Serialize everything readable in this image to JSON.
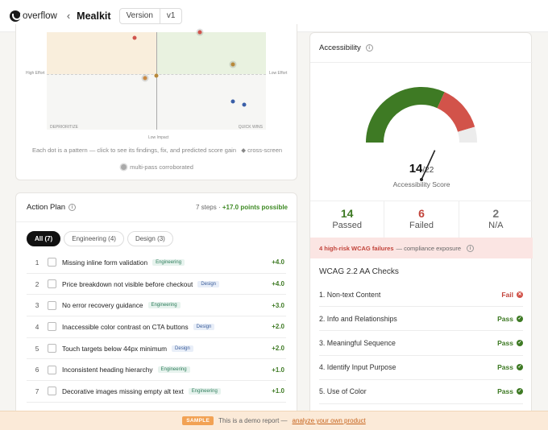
{
  "header": {
    "logo_text": "overflow",
    "project_name": "Mealkit",
    "version_label": "Version",
    "version_value": "v1"
  },
  "quadrant": {
    "labels": {
      "high_effort_left": "High Effort",
      "low_effort_right": "Low Effort",
      "bottom_left": "DEPRIORITIZE",
      "bottom_right": "QUICK WINS",
      "bottom_axis": "Low Impact"
    },
    "points": [
      {
        "x": 0.4,
        "y": 0.06,
        "color": "#d0544c",
        "multi": false
      },
      {
        "x": 0.7,
        "y": 0.0,
        "color": "#d0544c",
        "multi": true
      },
      {
        "x": 0.85,
        "y": 0.33,
        "color": "#b8893a",
        "multi": true
      },
      {
        "x": 0.5,
        "y": 0.45,
        "color": "#b8893a",
        "multi": false
      },
      {
        "x": 0.45,
        "y": 0.47,
        "color": "#c98a44",
        "multi": true
      },
      {
        "x": 0.85,
        "y": 0.71,
        "color": "#3a5fa8",
        "multi": false
      },
      {
        "x": 0.9,
        "y": 0.74,
        "color": "#3a5fa8",
        "multi": false
      }
    ],
    "caption": "Each dot is a pattern — click to see its findings, fix, and predicted score gain",
    "cross_screen_legend": "◆ cross-screen",
    "multipass_legend": "multi-pass corroborated"
  },
  "action_plan": {
    "title": "Action Plan",
    "steps_text": "7 steps ·",
    "points_text": "+17.0 points possible",
    "tabs": [
      "All (7)",
      "Engineering (4)",
      "Design (3)"
    ],
    "items": [
      {
        "num": "1",
        "title": "Missing inline form validation",
        "tag": "Engineering",
        "kind": "eng",
        "points": "+4.0"
      },
      {
        "num": "2",
        "title": "Price breakdown not visible before checkout",
        "tag": "Design",
        "kind": "des",
        "points": "+4.0"
      },
      {
        "num": "3",
        "title": "No error recovery guidance",
        "tag": "Engineering",
        "kind": "eng",
        "points": "+3.0"
      },
      {
        "num": "4",
        "title": "Inaccessible color contrast on CTA buttons",
        "tag": "Design",
        "kind": "des",
        "points": "+2.0"
      },
      {
        "num": "5",
        "title": "Touch targets below 44px minimum",
        "tag": "Design",
        "kind": "des",
        "points": "+2.0"
      },
      {
        "num": "6",
        "title": "Inconsistent heading hierarchy",
        "tag": "Engineering",
        "kind": "eng",
        "points": "+1.0"
      },
      {
        "num": "7",
        "title": "Decorative images missing empty alt text",
        "tag": "Engineering",
        "kind": "eng",
        "points": "+1.0"
      }
    ]
  },
  "accessibility": {
    "title": "Accessibility",
    "score": "14",
    "score_total": "/22",
    "score_label": "Accessibility Score",
    "gauge": {
      "passed": 14,
      "failed": 6,
      "na": 2,
      "passed_color": "#3e7a24",
      "failed_color": "#d2534a",
      "na_color": "#ececec"
    },
    "stats": [
      {
        "value": "14",
        "label": "Passed",
        "color": "#3e7a24"
      },
      {
        "value": "6",
        "label": "Failed",
        "color": "#c2443b"
      },
      {
        "value": "2",
        "label": "N/A",
        "color": "#777777"
      }
    ],
    "alert_strong": "4 high-risk WCAG failures",
    "alert_text": "— compliance exposure",
    "checks_title": "WCAG 2.2 AA Checks",
    "checks": [
      {
        "label": "1. Non-text Content",
        "status": "Fail",
        "kind": "fail"
      },
      {
        "label": "2. Info and Relationships",
        "status": "Pass",
        "kind": "pass"
      },
      {
        "label": "3. Meaningful Sequence",
        "status": "Pass",
        "kind": "pass"
      },
      {
        "label": "4. Identify Input Purpose",
        "status": "Pass",
        "kind": "pass"
      },
      {
        "label": "5. Use of Color",
        "status": "Pass",
        "kind": "pass"
      }
    ]
  },
  "banner": {
    "badge": "SAMPLE",
    "text": "This is a demo report —",
    "link": "analyze your own product"
  }
}
